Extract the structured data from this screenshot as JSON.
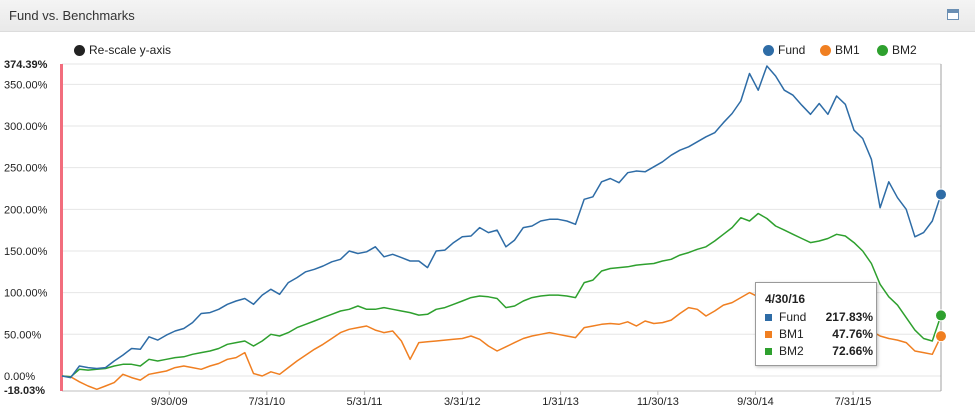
{
  "panel": {
    "title": "Fund vs. Benchmarks",
    "maximize_icon": "window-maximize-icon"
  },
  "controls": {
    "rescale_label": "Re-scale y-axis"
  },
  "tooltip": {
    "date": "4/30/16",
    "rows": [
      {
        "name": "Fund",
        "value": "217.83%",
        "color": "#2e6ca6"
      },
      {
        "name": "BM1",
        "value": "47.76%",
        "color": "#f07f21"
      },
      {
        "name": "BM2",
        "value": "72.66%",
        "color": "#2ea02e"
      }
    ]
  },
  "chart_data": {
    "type": "line",
    "x_tick_labels": [
      "9/30/09",
      "7/31/10",
      "5/31/11",
      "3/31/12",
      "1/31/13",
      "11/30/13",
      "9/30/14",
      "7/31/15"
    ],
    "y_tick_labels": [
      "374.39%",
      "350.00%",
      "300.00%",
      "250.00%",
      "200.00%",
      "150.00%",
      "100.00%",
      "50.00%",
      "0.00%",
      "-18.03%"
    ],
    "y_ticks": [
      374.39,
      350,
      300,
      250,
      200,
      150,
      100,
      50,
      0,
      -18.03
    ],
    "ylim": [
      -18.03,
      374.39
    ],
    "x_range": [
      "2008-10-31",
      "2016-04-30"
    ],
    "x_tick_dates": [
      "2009-09-30",
      "2010-07-31",
      "2011-05-31",
      "2012-03-31",
      "2013-01-31",
      "2013-11-30",
      "2014-09-30",
      "2015-07-31"
    ],
    "grid": true,
    "legend_position": "top-right",
    "highlighted_x": "2016-04-30",
    "series": [
      {
        "name": "Fund",
        "color": "#2e6ca6",
        "end_value": 217.83,
        "values": [
          0,
          -2,
          12,
          10,
          9,
          10,
          18,
          25,
          33,
          32,
          47,
          43,
          49,
          54,
          57,
          64,
          75,
          76,
          80,
          86,
          90,
          93,
          86,
          97,
          104,
          98,
          112,
          118,
          125,
          128,
          132,
          137,
          140,
          150,
          147,
          149,
          155,
          143,
          146,
          142,
          138,
          138,
          130,
          150,
          151,
          160,
          167,
          168,
          178,
          172,
          175,
          155,
          163,
          178,
          180,
          186,
          188,
          188,
          186,
          182,
          212,
          215,
          233,
          237,
          232,
          244,
          246,
          245,
          251,
          257,
          265,
          271,
          275,
          281,
          287,
          292,
          304,
          315,
          330,
          363,
          343,
          372,
          360,
          343,
          337,
          325,
          314,
          327,
          314,
          336,
          326,
          295,
          285,
          260,
          202,
          233,
          214,
          200,
          167,
          172,
          186,
          217.83
        ]
      },
      {
        "name": "BM1",
        "color": "#f07f21",
        "end_value": 47.76,
        "values": [
          0,
          -1,
          -7,
          -12,
          -16,
          -12,
          -8,
          2,
          -2,
          -5,
          2,
          4,
          6,
          10,
          12,
          10,
          8,
          12,
          15,
          20,
          22,
          28,
          3,
          0,
          5,
          2,
          10,
          18,
          25,
          32,
          38,
          45,
          52,
          56,
          58,
          60,
          55,
          52,
          54,
          42,
          20,
          40,
          41,
          42,
          43,
          44,
          45,
          48,
          44,
          36,
          30,
          35,
          40,
          45,
          48,
          50,
          52,
          50,
          48,
          46,
          58,
          60,
          62,
          63,
          62,
          65,
          60,
          66,
          63,
          64,
          67,
          75,
          82,
          80,
          72,
          78,
          85,
          88,
          94,
          100,
          95,
          104,
          98,
          90,
          85,
          70,
          65,
          80,
          78,
          72,
          64,
          60,
          58,
          54,
          48,
          45,
          43,
          40,
          30,
          28,
          26,
          47.76
        ]
      },
      {
        "name": "BM2",
        "color": "#2ea02e",
        "end_value": 72.66,
        "values": [
          0,
          -1,
          8,
          7,
          8,
          9,
          12,
          14,
          14,
          12,
          20,
          18,
          20,
          22,
          23,
          26,
          28,
          30,
          33,
          38,
          40,
          42,
          36,
          42,
          50,
          48,
          52,
          58,
          62,
          66,
          70,
          74,
          78,
          80,
          84,
          80,
          80,
          82,
          80,
          78,
          76,
          73,
          74,
          80,
          82,
          86,
          90,
          94,
          96,
          95,
          93,
          82,
          84,
          90,
          94,
          96,
          97,
          97,
          96,
          94,
          112,
          115,
          126,
          129,
          130,
          131,
          133,
          134,
          135,
          138,
          140,
          145,
          148,
          152,
          155,
          162,
          170,
          178,
          190,
          186,
          195,
          189,
          180,
          175,
          170,
          165,
          160,
          162,
          165,
          170,
          168,
          160,
          150,
          135,
          110,
          95,
          85,
          70,
          55,
          45,
          42,
          72.66
        ]
      }
    ]
  }
}
